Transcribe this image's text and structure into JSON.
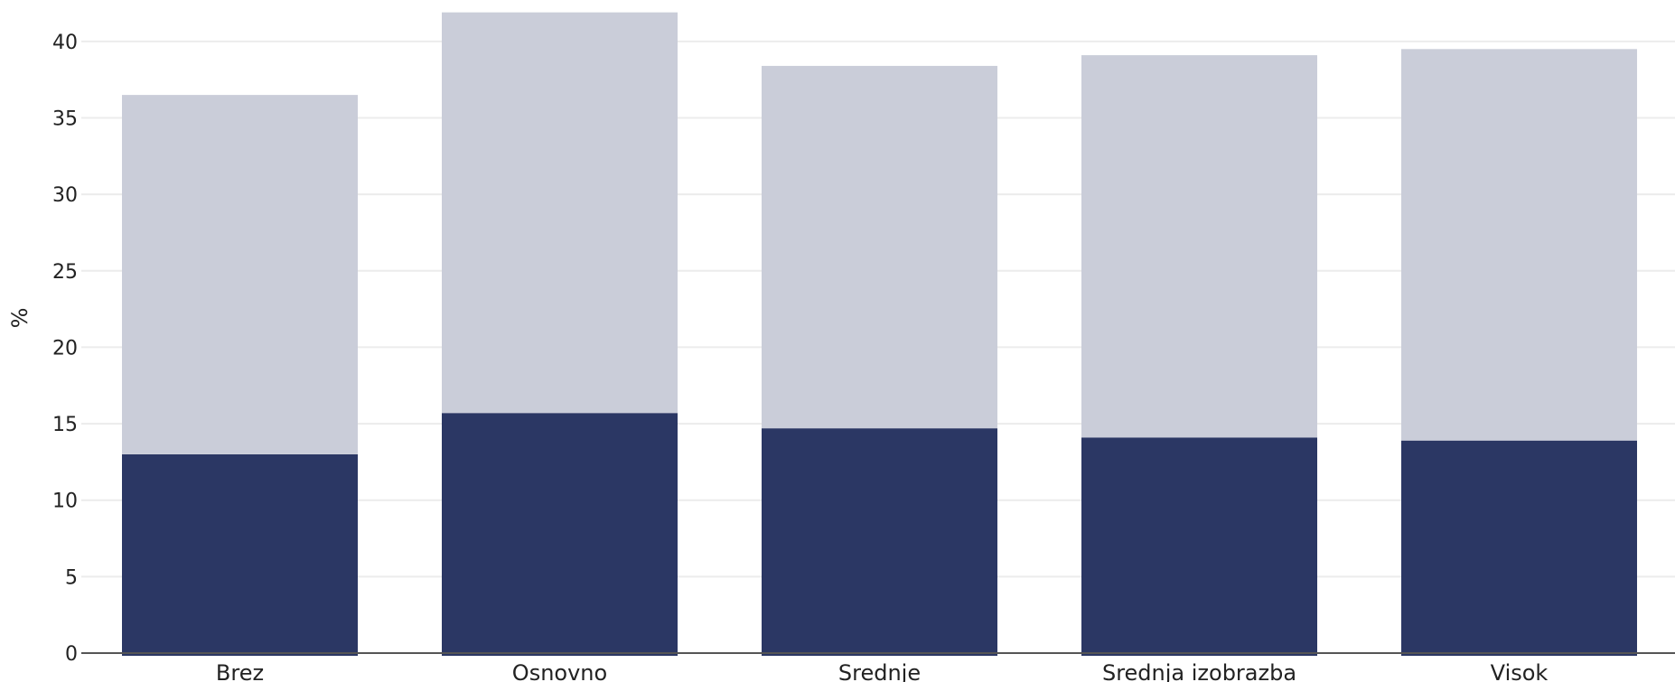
{
  "chart_data": {
    "type": "bar",
    "stacked": true,
    "ylabel": "%",
    "xlabel": "",
    "ylim": [
      0,
      42
    ],
    "yticks": [
      0,
      5,
      10,
      15,
      20,
      25,
      30,
      35,
      40
    ],
    "grid": true,
    "legend": "none",
    "categories": [
      "Brez",
      "Osnovno",
      "Srednje",
      "Srednja izobrazba",
      "Visok"
    ],
    "series": [
      {
        "values": [
          13.0,
          15.7,
          14.7,
          14.1,
          13.9
        ],
        "color": "#2b3764"
      },
      {
        "values": [
          23.5,
          26.2,
          23.7,
          25.0,
          25.6
        ],
        "color": "#cacdd9"
      }
    ]
  }
}
